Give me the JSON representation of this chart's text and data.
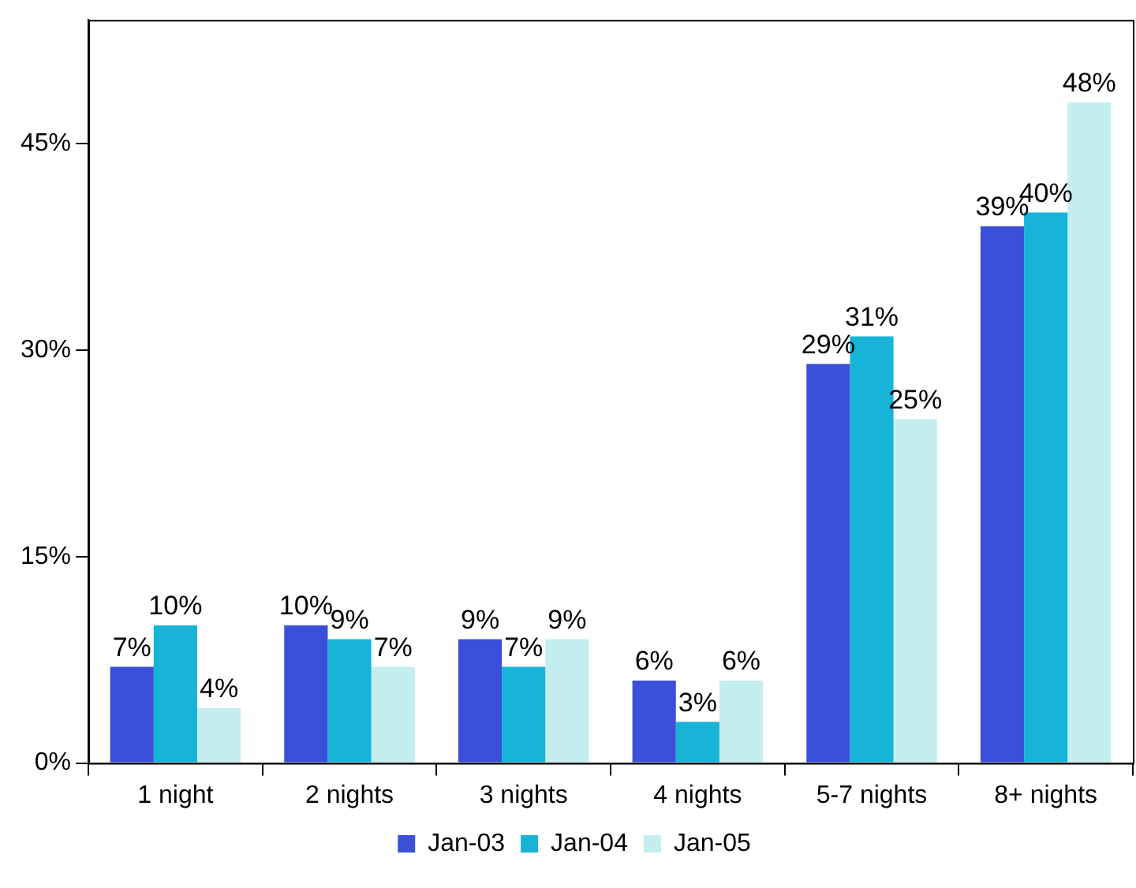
{
  "chart_data": {
    "type": "bar",
    "categories": [
      "1 night",
      "2 nights",
      "3 nights",
      "4 nights",
      "5-7 nights",
      "8+ nights"
    ],
    "series": [
      {
        "name": "Jan-03",
        "color": "#3a50d8",
        "values": [
          7,
          10,
          9,
          6,
          29,
          39
        ],
        "value_labels": [
          "7%",
          "10%",
          "9%",
          "6%",
          "29%",
          "39%"
        ]
      },
      {
        "name": "Jan-04",
        "color": "#18b4d8",
        "values": [
          10,
          9,
          7,
          3,
          31,
          40
        ],
        "value_labels": [
          "10%",
          "9%",
          "7%",
          "3%",
          "31%",
          "40%"
        ]
      },
      {
        "name": "Jan-05",
        "color": "#c4eef0",
        "values": [
          4,
          7,
          9,
          6,
          25,
          48
        ],
        "value_labels": [
          "4%",
          "7%",
          "9%",
          "6%",
          "25%",
          "48%"
        ]
      }
    ],
    "ylim": [
      0,
      54
    ],
    "yticks": [
      {
        "value": 0,
        "label": "0%"
      },
      {
        "value": 15,
        "label": "15%"
      },
      {
        "value": 30,
        "label": "30%"
      },
      {
        "value": 45,
        "label": "45%"
      }
    ],
    "grid": false,
    "legend": "bottom"
  }
}
